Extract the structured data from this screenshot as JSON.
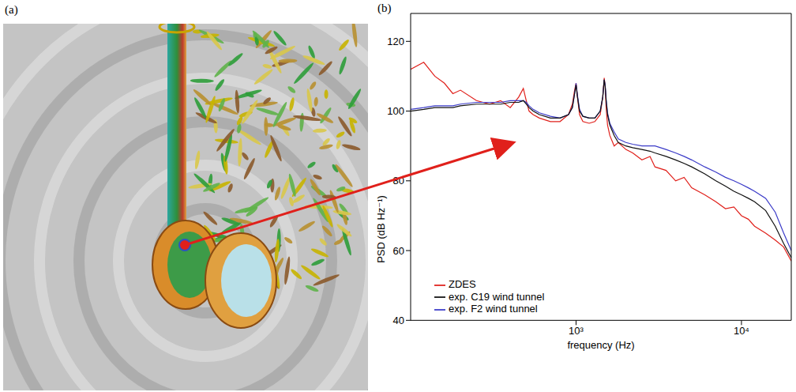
{
  "panel_labels": [
    "(a)",
    "(b)"
  ],
  "chart_data": {
    "type": "line",
    "x_label": "frequency (Hz)",
    "y_label": "PSD (dB Hz⁻¹)",
    "log": "x",
    "grid": false,
    "legend": "lower left",
    "xlim": [
      100,
      20000
    ],
    "xticks": [
      {
        "value": 1000,
        "label": "10³"
      },
      {
        "value": 10000,
        "label": "10⁴"
      }
    ],
    "ylim": [
      40,
      128
    ],
    "yticks": [
      40,
      60,
      80,
      100,
      120
    ],
    "x": [
      100,
      120,
      140,
      160,
      180,
      200,
      250,
      300,
      350,
      400,
      450,
      480,
      500,
      520,
      550,
      600,
      700,
      800,
      900,
      950,
      980,
      1000,
      1020,
      1050,
      1100,
      1200,
      1300,
      1400,
      1450,
      1480,
      1500,
      1520,
      1550,
      1600,
      1700,
      1800,
      2000,
      2200,
      2500,
      2800,
      3000,
      3500,
      4000,
      4500,
      5000,
      6000,
      7000,
      8000,
      9000,
      10000,
      11000,
      12000,
      14000,
      16000,
      18000,
      20000
    ],
    "series": [
      {
        "name": "ZDES",
        "color": "#e0201b",
        "values": [
          112,
          114,
          110,
          108,
          105,
          106,
          103,
          102,
          103,
          101,
          104,
          106.5,
          103,
          100,
          99,
          98,
          97,
          97,
          99,
          102,
          106,
          108,
          104,
          99,
          97,
          96.5,
          97,
          99,
          104,
          109.5,
          107,
          101,
          96,
          93,
          90,
          91,
          89,
          88,
          86,
          87,
          84,
          83,
          80,
          81,
          78,
          76,
          74,
          72,
          72.5,
          70,
          69,
          67,
          65,
          63,
          61,
          57
        ]
      },
      {
        "name": "exp. F2 wind tunnel",
        "color": "#3c3cc8",
        "values": [
          100.5,
          101,
          101.5,
          101.5,
          101.5,
          102,
          102.5,
          102.5,
          102.5,
          103,
          103,
          103,
          102.5,
          101.5,
          100.5,
          99.5,
          98.5,
          98,
          99,
          101,
          105,
          108,
          104.5,
          100.5,
          98.5,
          98,
          98,
          100,
          104,
          109,
          107.5,
          103.5,
          99.5,
          96.5,
          94,
          92,
          91,
          90.5,
          90,
          90,
          90,
          89,
          88,
          87,
          86,
          84,
          82.5,
          81,
          80,
          79,
          78,
          77,
          75,
          71,
          65,
          60
        ]
      },
      {
        "name": "exp. C19 wind tunnel",
        "color": "#111111",
        "values": [
          100,
          100.5,
          101,
          101,
          101,
          101.5,
          102,
          102,
          102,
          102.5,
          102.5,
          103,
          102,
          101,
          100,
          99,
          98,
          98,
          99,
          101,
          105,
          107.5,
          104,
          100,
          98.5,
          98,
          98,
          100,
          104,
          109,
          107,
          103,
          99,
          96,
          93,
          91,
          90,
          89.5,
          89,
          88.5,
          88,
          87,
          86,
          85,
          84,
          82,
          80,
          78.5,
          77,
          76,
          75,
          74,
          71.5,
          67,
          62,
          58
        ]
      }
    ]
  }
}
